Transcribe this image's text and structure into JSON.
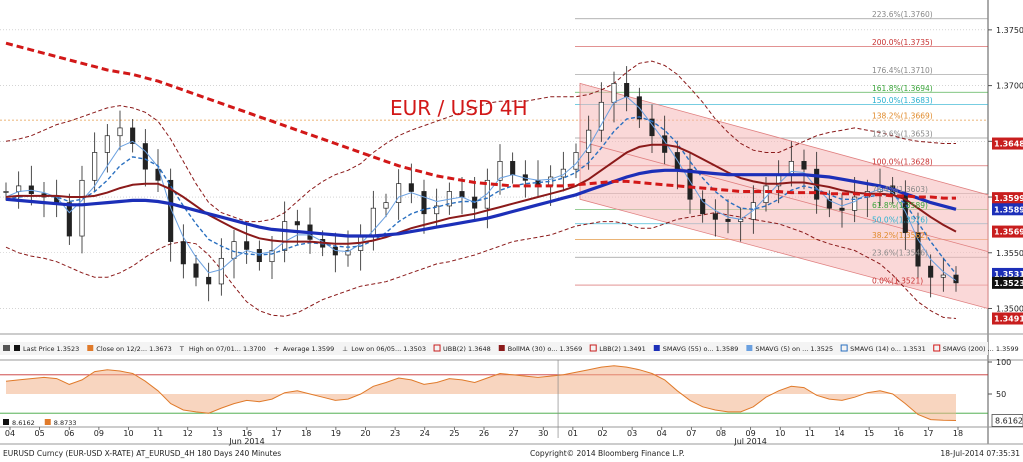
{
  "chart_data": {
    "type": "line",
    "title": "EUR / USD 4H",
    "footer": {
      "security": "EURUSD Curncy (EUR-USD X-RATE) AT_EURUSD_4H 180 Days 240 Minutes",
      "copyright": "Copyright© 2014 Bloomberg Finance L.P.",
      "timestamp": "18-Jul-2014 07:35:31"
    },
    "x_ticks": [
      "04",
      "05",
      "06",
      "09",
      "10",
      "11",
      "12",
      "13",
      "16",
      "17",
      "18",
      "19",
      "20",
      "23",
      "24",
      "25",
      "26",
      "27",
      "30",
      "01",
      "02",
      "03",
      "04",
      "07",
      "08",
      "09",
      "10",
      "11",
      "14",
      "15",
      "16",
      "17",
      "18"
    ],
    "month_labels": [
      {
        "label": "Jun 2014",
        "at": "16"
      },
      {
        "label": "Jul 2014",
        "at": "09"
      }
    ],
    "price_axis": {
      "ticks": [
        "1.3750",
        "1.3700",
        "1.3650",
        "1.3600",
        "1.3550",
        "1.3500"
      ],
      "ylim": [
        1.3478,
        1.3775
      ]
    },
    "osc_axis": {
      "ticks": [
        "100",
        "50"
      ],
      "ylim": [
        0,
        100
      ]
    },
    "badges": [
      {
        "value": "1.3648",
        "color": "#c81e1e"
      },
      {
        "value": "1.3599",
        "color": "#c81e1e"
      },
      {
        "value": "1.3589",
        "color": "#1c2fb8"
      },
      {
        "value": "1.3569",
        "color": "#c81e1e"
      },
      {
        "value": "1.3531",
        "color": "#1c2fb8"
      },
      {
        "value": "1.3523",
        "color": "#111111"
      },
      {
        "value": "1.3491",
        "color": "#c81e1e"
      }
    ],
    "osc_badges": [
      {
        "value": "8.6162",
        "color": "#ffffff"
      }
    ],
    "fib_levels": [
      {
        "label": "223.6%(1.3760)",
        "color": "#888888"
      },
      {
        "label": "200.0%(1.3735)",
        "color": "#c83232"
      },
      {
        "label": "176.4%(1.3710)",
        "color": "#888888"
      },
      {
        "label": "161.8%(1.3694)",
        "color": "#3aa53a"
      },
      {
        "label": "150.0%(1.3683)",
        "color": "#2ab0d0"
      },
      {
        "label": "138.2%(1.3669)",
        "color": "#e08a2a"
      },
      {
        "label": "123.6%(1.3653)",
        "color": "#888888"
      },
      {
        "label": "100.0%(1.3628)",
        "color": "#c83232"
      },
      {
        "label": "76.4%(1.3603)",
        "color": "#888888"
      },
      {
        "label": "61.8%(1.3589)",
        "color": "#3aa53a"
      },
      {
        "label": "50.0%(1.3576)",
        "color": "#2ab0d0"
      },
      {
        "label": "38.2%(1.3562)",
        "color": "#e08a2a"
      },
      {
        "label": "23.6%(1.3546)",
        "color": "#888888"
      },
      {
        "label": "0.0%(1.3521)",
        "color": "#c83232"
      }
    ],
    "legend": [
      {
        "label": "Last Price  1.3523",
        "color": "#111111",
        "kind": "box"
      },
      {
        "label": "Close on 12/2... 1.3673",
        "color": "#e07a2a",
        "kind": "box"
      },
      {
        "label": "High on 07/01... 1.3700",
        "color": "#111111",
        "kind": "T"
      },
      {
        "label": "Average  1.3599",
        "color": "#111111",
        "kind": "plus"
      },
      {
        "label": "Low on 06/05... 1.3503",
        "color": "#111111",
        "kind": "L"
      },
      {
        "label": "UBB(2)  1.3648",
        "color": "#c81e1e",
        "kind": "outline"
      },
      {
        "label": "BollMA (30) o...  1.3569",
        "color": "#8b1a1a",
        "kind": "box"
      },
      {
        "label": "LBB(2)  1.3491",
        "color": "#c81e1e",
        "kind": "outline"
      },
      {
        "label": "SMAVG (55) o...  1.3589",
        "color": "#1c2fb8",
        "kind": "box"
      },
      {
        "label": "SMAVG (5) on ...  1.3525",
        "color": "#6aa0e0",
        "kind": "box"
      },
      {
        "label": "SMAVG (14) o...  1.3531",
        "color": "#2a70c0",
        "kind": "outline"
      },
      {
        "label": "SMAVG (200) ...  1.3599",
        "color": "#d21818",
        "kind": "outline"
      }
    ],
    "osc_legend": [
      {
        "label": "8.6162",
        "color": "#111111"
      },
      {
        "label": "8.8733",
        "color": "#e07a2a"
      }
    ],
    "series": [
      {
        "name": "Last Price",
        "color": "#111111",
        "values": [
          1.3605,
          1.361,
          1.3603,
          1.36,
          1.3595,
          1.3565,
          1.3615,
          1.364,
          1.3655,
          1.3662,
          1.3648,
          1.3625,
          1.3615,
          1.356,
          1.354,
          1.3528,
          1.3522,
          1.3545,
          1.356,
          1.3553,
          1.3542,
          1.3552,
          1.3578,
          1.3575,
          1.3562,
          1.3555,
          1.3548,
          1.3552,
          1.3565,
          1.359,
          1.3595,
          1.3612,
          1.3605,
          1.3585,
          1.3592,
          1.3605,
          1.36,
          1.359,
          1.3615,
          1.3632,
          1.362,
          1.3615,
          1.361,
          1.3618,
          1.3625,
          1.364,
          1.366,
          1.3685,
          1.3702,
          1.369,
          1.367,
          1.3655,
          1.364,
          1.3625,
          1.3598,
          1.3585,
          1.358,
          1.3578,
          1.358,
          1.3595,
          1.361,
          1.362,
          1.3632,
          1.3625,
          1.3598,
          1.359,
          1.3588,
          1.36,
          1.3605,
          1.361,
          1.3602,
          1.3568,
          1.3538,
          1.3528,
          1.353,
          1.3523
        ]
      },
      {
        "name": "SMAVG (5)",
        "color": "#6aa0e0",
        "values": [
          1.36,
          1.3605,
          1.3606,
          1.3604,
          1.36,
          1.3586,
          1.3597,
          1.361,
          1.3628,
          1.3645,
          1.365,
          1.3641,
          1.3627,
          1.359,
          1.3564,
          1.3546,
          1.3532,
          1.3535,
          1.3545,
          1.3552,
          1.3549,
          1.3551,
          1.356,
          1.3566,
          1.3566,
          1.356,
          1.3552,
          1.3551,
          1.3558,
          1.357,
          1.3583,
          1.36,
          1.3604,
          1.36,
          1.3596,
          1.3598,
          1.36,
          1.3595,
          1.3603,
          1.3617,
          1.362,
          1.3617,
          1.3615,
          1.3616,
          1.362,
          1.363,
          1.3645,
          1.3665,
          1.3685,
          1.369,
          1.368,
          1.3665,
          1.365,
          1.3633,
          1.3614,
          1.3596,
          1.3588,
          1.3582,
          1.358,
          1.3588,
          1.36,
          1.3612,
          1.3623,
          1.3622,
          1.3608,
          1.3597,
          1.3592,
          1.3596,
          1.3603,
          1.3607,
          1.3604,
          1.3587,
          1.3562,
          1.3544,
          1.3533,
          1.3525
        ]
      },
      {
        "name": "SMAVG (14)",
        "color": "#2a70c0",
        "values": [
          1.3598,
          1.36,
          1.3601,
          1.3601,
          1.36,
          1.3596,
          1.3598,
          1.3605,
          1.3615,
          1.3628,
          1.3636,
          1.3634,
          1.3628,
          1.361,
          1.3592,
          1.3576,
          1.3562,
          1.3556,
          1.3551,
          1.3549,
          1.3548,
          1.3549,
          1.3553,
          1.3557,
          1.3559,
          1.3558,
          1.3556,
          1.3555,
          1.3556,
          1.3561,
          1.3568,
          1.3578,
          1.3585,
          1.3589,
          1.3591,
          1.3594,
          1.3596,
          1.3596,
          1.3599,
          1.3606,
          1.361,
          1.3612,
          1.3613,
          1.3614,
          1.3617,
          1.3622,
          1.3631,
          1.3644,
          1.3659,
          1.367,
          1.3672,
          1.3668,
          1.366,
          1.3648,
          1.3632,
          1.3617,
          1.3605,
          1.3596,
          1.359,
          1.3589,
          1.3592,
          1.3598,
          1.3606,
          1.361,
          1.3607,
          1.3602,
          1.3598,
          1.3598,
          1.36,
          1.3602,
          1.3602,
          1.3594,
          1.3577,
          1.356,
          1.3545,
          1.3531
        ]
      },
      {
        "name": "BollMA (30)",
        "color": "#8b1a1a",
        "values": [
          1.36,
          1.3601,
          1.3601,
          1.3601,
          1.3601,
          1.36,
          1.36,
          1.3601,
          1.3604,
          1.3608,
          1.3611,
          1.3612,
          1.3612,
          1.3607,
          1.36,
          1.3592,
          1.3584,
          1.3578,
          1.3572,
          1.3567,
          1.3563,
          1.3561,
          1.356,
          1.356,
          1.356,
          1.3559,
          1.3558,
          1.3558,
          1.3559,
          1.3561,
          1.3564,
          1.3568,
          1.3572,
          1.3575,
          1.3578,
          1.3581,
          1.3583,
          1.3585,
          1.3588,
          1.3591,
          1.3594,
          1.3597,
          1.36,
          1.3603,
          1.3606,
          1.361,
          1.3616,
          1.3624,
          1.3632,
          1.364,
          1.3645,
          1.3647,
          1.3647,
          1.3645,
          1.364,
          1.3634,
          1.3628,
          1.3622,
          1.3617,
          1.3614,
          1.3612,
          1.3612,
          1.3613,
          1.3613,
          1.3611,
          1.3609,
          1.3606,
          1.3604,
          1.3603,
          1.3603,
          1.3602,
          1.3598,
          1.359,
          1.3582,
          1.3575,
          1.3569
        ]
      },
      {
        "name": "SMAVG (55)",
        "color": "#1c2fb8",
        "values": [
          1.3598,
          1.3597,
          1.3596,
          1.3595,
          1.3594,
          1.3593,
          1.3593,
          1.3594,
          1.3595,
          1.3596,
          1.3597,
          1.3597,
          1.3596,
          1.3594,
          1.3591,
          1.3588,
          1.3585,
          1.3582,
          1.3579,
          1.3576,
          1.3573,
          1.3571,
          1.357,
          1.3569,
          1.3568,
          1.3567,
          1.3566,
          1.3565,
          1.3565,
          1.3565,
          1.3566,
          1.3567,
          1.3569,
          1.3571,
          1.3573,
          1.3575,
          1.3577,
          1.3579,
          1.3581,
          1.3584,
          1.3587,
          1.359,
          1.3593,
          1.3596,
          1.3599,
          1.3602,
          1.3606,
          1.361,
          1.3614,
          1.3618,
          1.3621,
          1.3623,
          1.3624,
          1.3624,
          1.3623,
          1.3622,
          1.3621,
          1.362,
          1.362,
          1.362,
          1.362,
          1.362,
          1.362,
          1.362,
          1.3619,
          1.3618,
          1.3616,
          1.3614,
          1.3612,
          1.361,
          1.3607,
          1.3603,
          1.3599,
          1.3595,
          1.3592,
          1.3589
        ]
      },
      {
        "name": "SMAVG (200)",
        "color": "#d21818",
        "values": [
          1.3738,
          1.3735,
          1.3732,
          1.3729,
          1.3726,
          1.3723,
          1.372,
          1.3717,
          1.3714,
          1.3712,
          1.371,
          1.3707,
          1.3704,
          1.37,
          1.3696,
          1.3692,
          1.3688,
          1.3684,
          1.368,
          1.3676,
          1.3672,
          1.3668,
          1.3664,
          1.366,
          1.3656,
          1.3652,
          1.3648,
          1.3644,
          1.364,
          1.3636,
          1.3632,
          1.3628,
          1.3625,
          1.3622,
          1.3619,
          1.3617,
          1.3615,
          1.3613,
          1.3612,
          1.3611,
          1.361,
          1.361,
          1.361,
          1.361,
          1.361,
          1.3611,
          1.3612,
          1.3613,
          1.3614,
          1.3614,
          1.3613,
          1.3612,
          1.3611,
          1.361,
          1.3609,
          1.3608,
          1.3607,
          1.3606,
          1.3605,
          1.3605,
          1.3605,
          1.3605,
          1.3604,
          1.3604,
          1.3604,
          1.3603,
          1.3603,
          1.3603,
          1.3602,
          1.3602,
          1.3601,
          1.3601,
          1.36,
          1.36,
          1.3599,
          1.3599
        ]
      },
      {
        "name": "UBB(2)",
        "color": "#c81e1e",
        "values": [
          1.365,
          1.3652,
          1.3655,
          1.366,
          1.3665,
          1.3668,
          1.3672,
          1.3676,
          1.368,
          1.3682,
          1.368,
          1.3676,
          1.3668,
          1.3652,
          1.3632,
          1.3612,
          1.3595,
          1.3586,
          1.3582,
          1.3578,
          1.3578,
          1.358,
          1.3586,
          1.3596,
          1.3606,
          1.3614,
          1.362,
          1.3624,
          1.363,
          1.364,
          1.3648,
          1.3655,
          1.366,
          1.3664,
          1.3668,
          1.3672,
          1.3676,
          1.368,
          1.3684,
          1.3686,
          1.3686,
          1.3686,
          1.3688,
          1.369,
          1.369,
          1.369,
          1.3692,
          1.3696,
          1.3702,
          1.3712,
          1.372,
          1.3722,
          1.3718,
          1.371,
          1.3698,
          1.3685,
          1.367,
          1.3658,
          1.3648,
          1.3642,
          1.364,
          1.364,
          1.3645,
          1.365,
          1.3655,
          1.3658,
          1.366,
          1.3662,
          1.366,
          1.3658,
          1.3655,
          1.3652,
          1.365,
          1.3649,
          1.3648,
          1.3648
        ]
      },
      {
        "name": "LBB(2)",
        "color": "#c81e1e",
        "values": [
          1.3555,
          1.355,
          1.3547,
          1.3545,
          1.3542,
          1.3537,
          1.3532,
          1.3528,
          1.3528,
          1.3532,
          1.3538,
          1.3546,
          1.3553,
          1.3558,
          1.356,
          1.3558,
          1.3548,
          1.3535,
          1.352,
          1.3506,
          1.3498,
          1.3494,
          1.3493,
          1.3496,
          1.3502,
          1.3508,
          1.3512,
          1.3516,
          1.352,
          1.3522,
          1.3524,
          1.3528,
          1.3532,
          1.3536,
          1.354,
          1.3542,
          1.3545,
          1.3548,
          1.3552,
          1.3556,
          1.356,
          1.3562,
          1.3564,
          1.3566,
          1.357,
          1.3574,
          1.3576,
          1.3578,
          1.3578,
          1.3576,
          1.3572,
          1.3572,
          1.3576,
          1.358,
          1.3582,
          1.3584,
          1.3586,
          1.3584,
          1.3582,
          1.358,
          1.3578,
          1.3576,
          1.3572,
          1.3568,
          1.3562,
          1.3558,
          1.3555,
          1.3552,
          1.3546,
          1.354,
          1.353,
          1.3518,
          1.3506,
          1.3498,
          1.3492,
          1.3491
        ]
      }
    ],
    "oscillator": {
      "values": [
        70,
        72,
        74,
        76,
        74,
        65,
        72,
        85,
        88,
        86,
        82,
        70,
        55,
        35,
        25,
        22,
        20,
        28,
        35,
        40,
        38,
        42,
        52,
        55,
        50,
        45,
        40,
        42,
        50,
        62,
        68,
        75,
        72,
        65,
        68,
        74,
        72,
        68,
        75,
        82,
        80,
        78,
        76,
        78,
        80,
        84,
        88,
        92,
        94,
        92,
        88,
        82,
        72,
        55,
        40,
        30,
        25,
        22,
        22,
        30,
        45,
        55,
        62,
        60,
        48,
        42,
        40,
        45,
        52,
        55,
        50,
        35,
        18,
        10,
        9,
        8.6
      ],
      "ref_lines": [
        80,
        20
      ]
    },
    "channel": {
      "upper_start": 1.3702,
      "upper_end": 1.3602,
      "lower_start": 1.3598,
      "lower_end": 1.35
    }
  }
}
